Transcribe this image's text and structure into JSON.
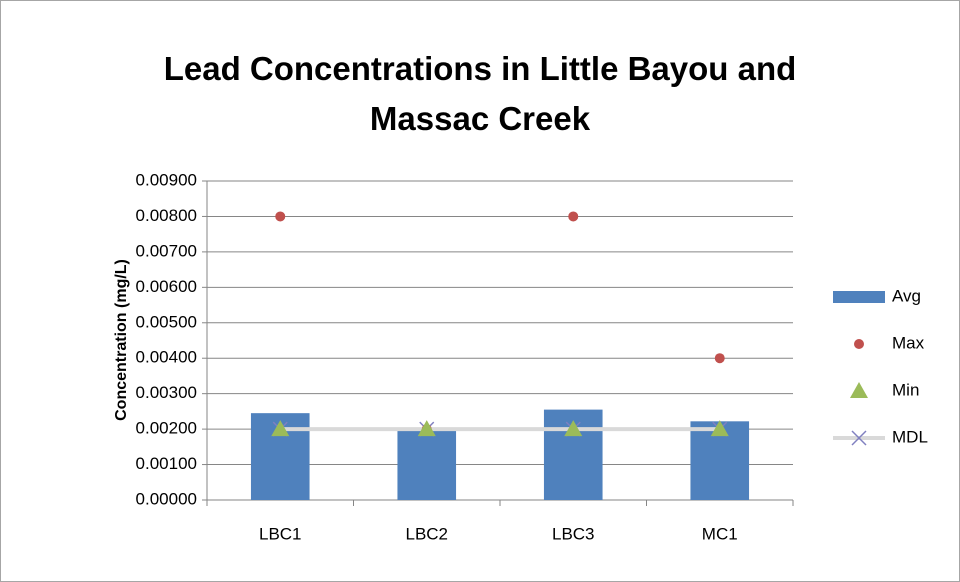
{
  "chart_data": {
    "type": "bar",
    "title": "Lead Concentrations in Little Bayou and Massac Creek",
    "y_label": "Concentration (mg/L)",
    "categories": [
      "LBC1",
      "LBC2",
      "LBC3",
      "MC1"
    ],
    "series": [
      {
        "name": "Avg",
        "type": "bar",
        "color": "#4f81bd",
        "values": [
          0.00245,
          0.00195,
          0.00255,
          0.00222
        ]
      },
      {
        "name": "Max",
        "type": "scatter",
        "marker": "circle",
        "color": "#c0504d",
        "values": [
          0.008,
          0.002,
          0.008,
          0.004
        ]
      },
      {
        "name": "Min",
        "type": "scatter",
        "marker": "triangle",
        "color": "#9bbb59",
        "values": [
          0.002,
          0.002,
          0.002,
          0.002
        ]
      },
      {
        "name": "MDL",
        "type": "line",
        "marker": "x",
        "color": "#d9d9d9",
        "marker_color": "#8080c0",
        "values": [
          0.002,
          0.002,
          0.002,
          0.002
        ]
      }
    ],
    "ylim": [
      0,
      0.009
    ],
    "yticks": [
      {
        "value": 0,
        "label": "0.00000"
      },
      {
        "value": 0.001,
        "label": "0.00100"
      },
      {
        "value": 0.002,
        "label": "0.00200"
      },
      {
        "value": 0.003,
        "label": "0.00300"
      },
      {
        "value": 0.004,
        "label": "0.00400"
      },
      {
        "value": 0.005,
        "label": "0.00500"
      },
      {
        "value": 0.006,
        "label": "0.00600"
      },
      {
        "value": 0.007,
        "label": "0.00700"
      },
      {
        "value": 0.008,
        "label": "0.00800"
      },
      {
        "value": 0.009,
        "label": "0.00900"
      }
    ],
    "grid": true,
    "legend": "right"
  }
}
